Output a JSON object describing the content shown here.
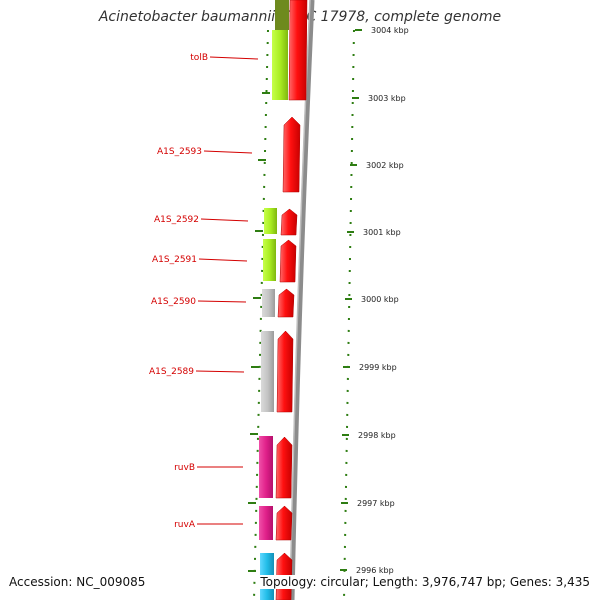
{
  "title": "Acinetobacter baumannii ATCC 17978, complete genome",
  "accession": "Accession: NC_009085",
  "topology": "Topology: circular; Length: 3,976,747 bp; Genes: 3,435",
  "colors": {
    "label": "#d40000",
    "tick": "#2e7d12",
    "backbone": "#8c8c8c",
    "forward_gene": "#ff1010",
    "lime": "#aaee22",
    "gray": "#c4c4c4",
    "magenta": "#e0208a",
    "cyan": "#22bde8",
    "olive": "#6e8a1e"
  },
  "genes": [
    {
      "name": "tolB",
      "label": "tolB"
    },
    {
      "name": "A1S_2593",
      "label": "A1S_2593"
    },
    {
      "name": "A1S_2592",
      "label": "A1S_2592"
    },
    {
      "name": "A1S_2591",
      "label": "A1S_2591"
    },
    {
      "name": "A1S_2590",
      "label": "A1S_2590"
    },
    {
      "name": "A1S_2589",
      "label": "A1S_2589"
    },
    {
      "name": "ruvB",
      "label": "ruvB"
    },
    {
      "name": "ruvA",
      "label": "ruvA"
    }
  ],
  "kbp_ticks": [
    "3004 kbp",
    "3003 kbp",
    "3002 kbp",
    "3001 kbp",
    "3000 kbp",
    "2999 kbp",
    "2998 kbp",
    "2997 kbp",
    "2996 kbp"
  ]
}
